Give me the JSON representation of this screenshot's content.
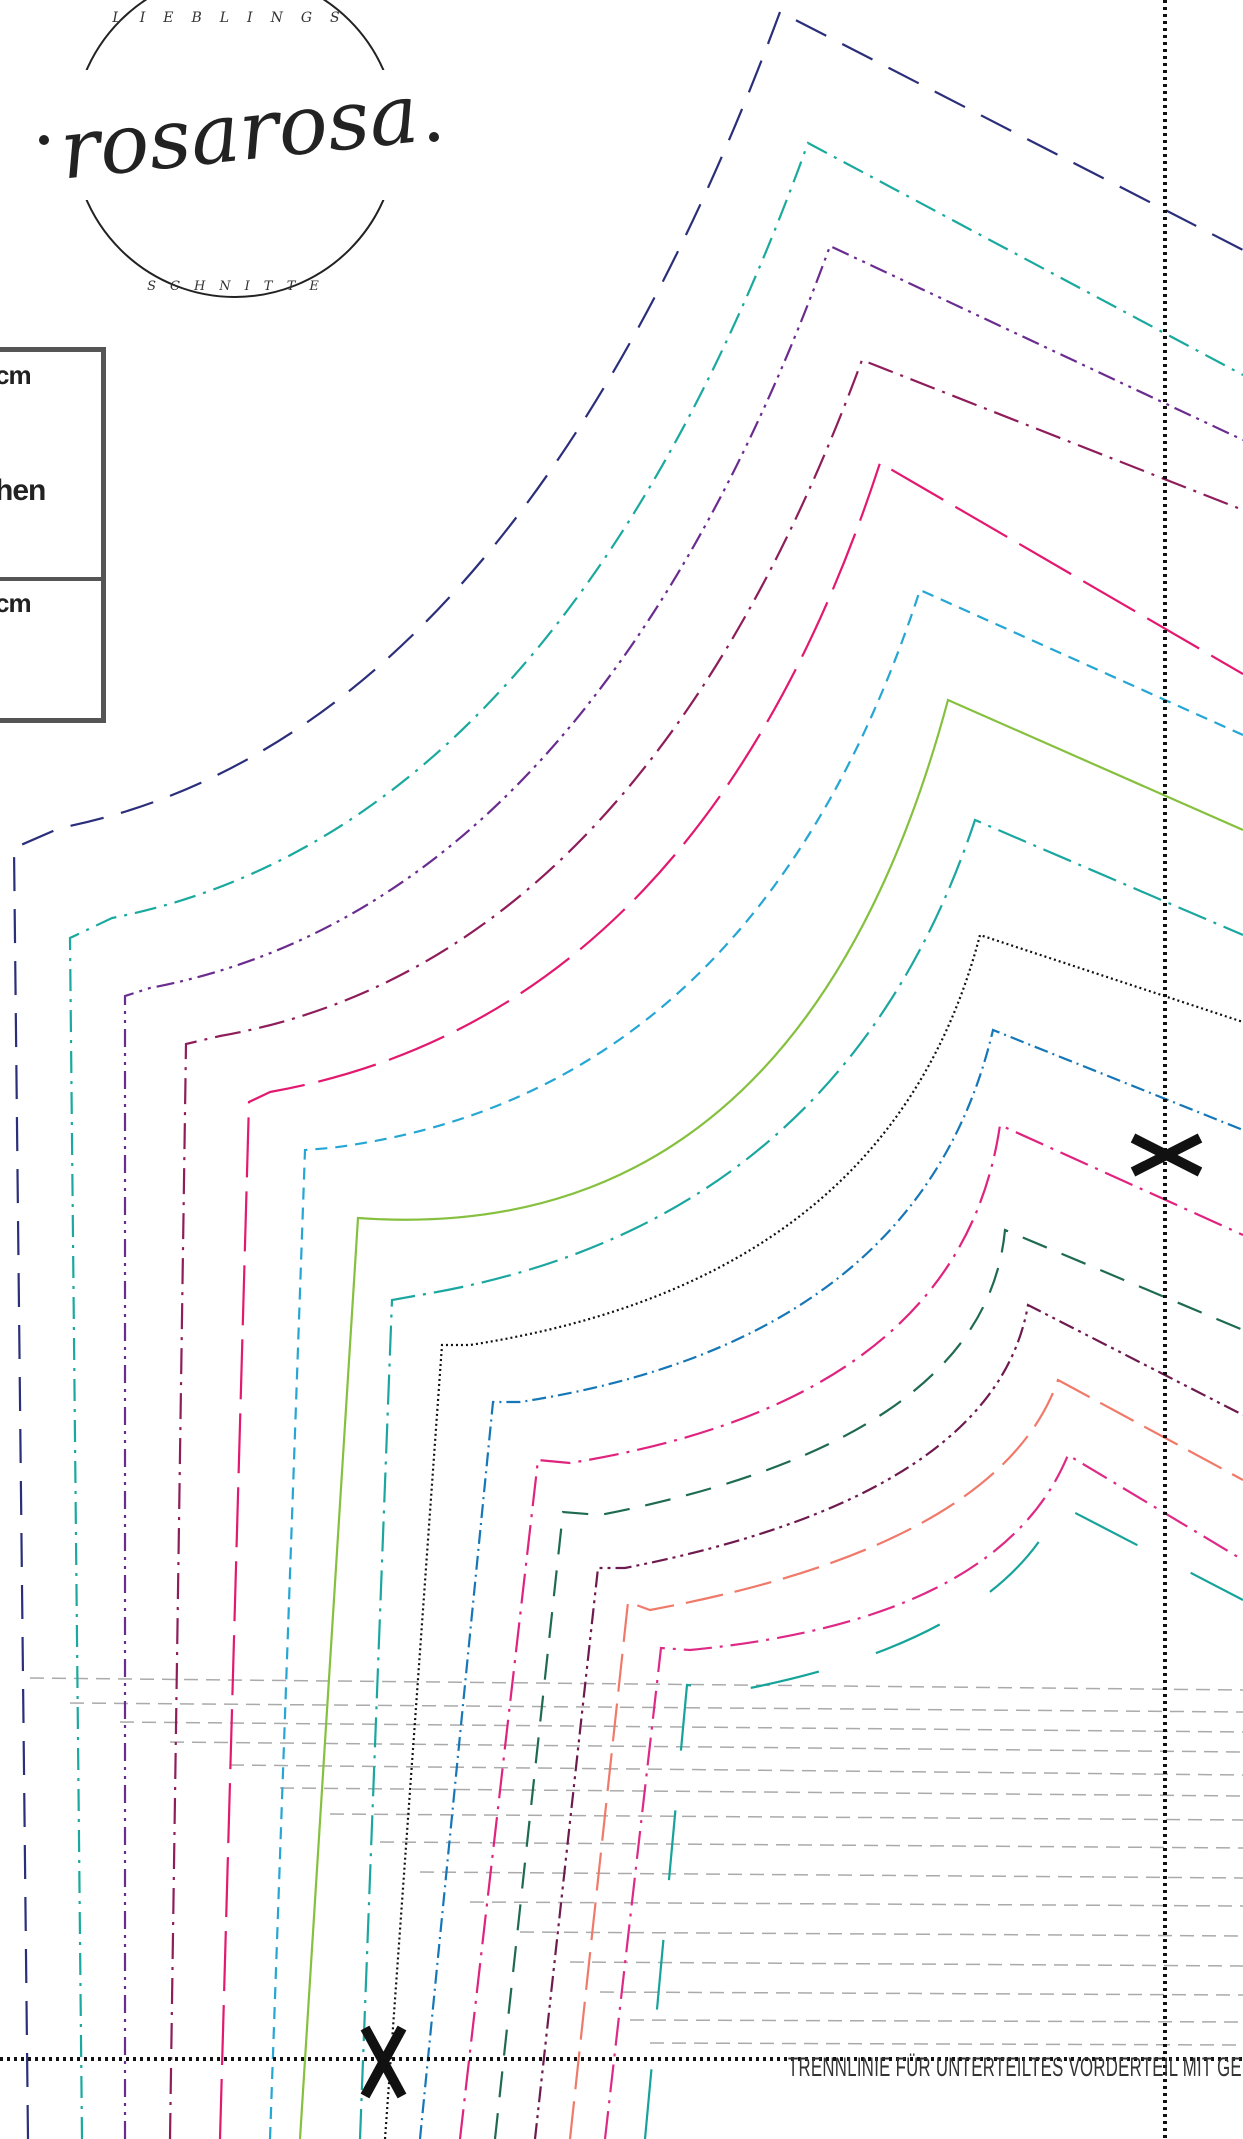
{
  "logo": {
    "top_text": "LIEBLINGS",
    "script_text": "rosarosa",
    "bottom_text": "SCHNITTE"
  },
  "size_box": {
    "label_1": "cm",
    "label_2": "hen",
    "label_3": "cm"
  },
  "divider_label": "TRENNLINIE FÜR UNTERTEILTES VORDERTEIL MIT GER",
  "colors": {
    "navy": "#2b2e7a",
    "teal": "#1aa99e",
    "purple": "#6a2c8f",
    "plum": "#8e1d5a",
    "pink": "#e3186f",
    "sky": "#25a6d4",
    "green": "#86c03f",
    "teal2": "#1ba7a0",
    "black": "#111111",
    "blue": "#1677b8",
    "magenta": "#e0237f",
    "darkgreen": "#1e6b50",
    "wine": "#6e1a4f",
    "salmon": "#f07a6a",
    "magenta2": "#de2a86",
    "teal3": "#16a39a"
  }
}
